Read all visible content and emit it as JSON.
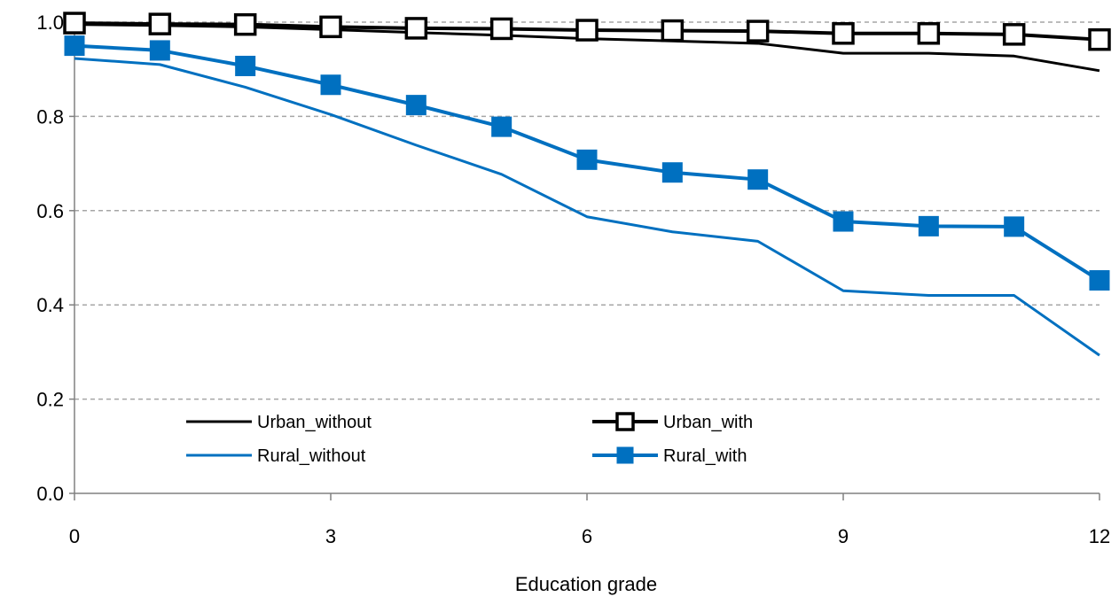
{
  "chart_data": {
    "type": "line",
    "title": "",
    "xlabel": "Education grade",
    "ylabel": "",
    "x": [
      0,
      1,
      2,
      3,
      4,
      5,
      6,
      7,
      8,
      9,
      10,
      11,
      12
    ],
    "xlim": [
      0,
      12
    ],
    "ylim": [
      0,
      1.0
    ],
    "x_ticks": [
      0,
      3,
      6,
      9,
      12
    ],
    "y_ticks": [
      0.0,
      0.2,
      0.4,
      0.6,
      0.8,
      1.0
    ],
    "x_tick_labels": [
      "0",
      "3",
      "6",
      "9",
      "12"
    ],
    "y_tick_labels": [
      "0.0",
      "0.2",
      "0.4",
      "0.6",
      "0.8",
      "1.0"
    ],
    "grid": "horizontal-dashed",
    "legend_position": "bottom-inside",
    "series": [
      {
        "name": "Urban_without",
        "color": "#000000",
        "marker": "none",
        "values": [
          0.995,
          0.993,
          0.99,
          0.984,
          0.978,
          0.972,
          0.965,
          0.96,
          0.955,
          0.934,
          0.934,
          0.928,
          0.897
        ]
      },
      {
        "name": "Urban_with",
        "color": "#000000",
        "marker": "square-open",
        "values": [
          0.998,
          0.996,
          0.995,
          0.99,
          0.987,
          0.986,
          0.983,
          0.982,
          0.981,
          0.976,
          0.976,
          0.974,
          0.963
        ]
      },
      {
        "name": "Rural_without",
        "color": "#0070C0",
        "marker": "none",
        "values": [
          0.923,
          0.91,
          0.862,
          0.804,
          0.739,
          0.677,
          0.587,
          0.555,
          0.535,
          0.43,
          0.42,
          0.42,
          0.293
        ]
      },
      {
        "name": "Rural_with",
        "color": "#0070C0",
        "marker": "square-filled",
        "values": [
          0.95,
          0.94,
          0.907,
          0.867,
          0.824,
          0.778,
          0.708,
          0.681,
          0.666,
          0.577,
          0.567,
          0.566,
          0.452
        ]
      }
    ]
  }
}
